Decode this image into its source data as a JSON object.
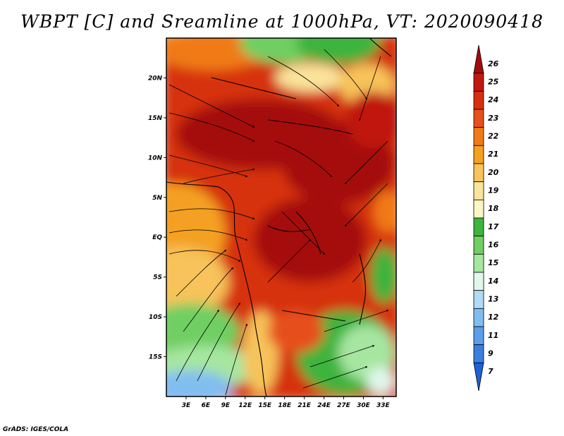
{
  "title": "WBPT [C] and Sreamline at 1000hPa, VT: 2020090418",
  "credit": "GrADS: IGES/COLA",
  "map": {
    "lat_ticks": [
      {
        "value": 20,
        "label": "20N"
      },
      {
        "value": 15,
        "label": "15N"
      },
      {
        "value": 10,
        "label": "10N"
      },
      {
        "value": 5,
        "label": "5N"
      },
      {
        "value": 0,
        "label": "EQ"
      },
      {
        "value": -5,
        "label": "5S"
      },
      {
        "value": -10,
        "label": "10S"
      },
      {
        "value": -15,
        "label": "15S"
      }
    ],
    "lon_ticks": [
      {
        "value": 3,
        "label": "3E"
      },
      {
        "value": 6,
        "label": "6E"
      },
      {
        "value": 9,
        "label": "9E"
      },
      {
        "value": 12,
        "label": "12E"
      },
      {
        "value": 15,
        "label": "15E"
      },
      {
        "value": 18,
        "label": "18E"
      },
      {
        "value": 21,
        "label": "21E"
      },
      {
        "value": 24,
        "label": "24E"
      },
      {
        "value": 27,
        "label": "27E"
      },
      {
        "value": 30,
        "label": "30E"
      },
      {
        "value": 33,
        "label": "33E"
      }
    ],
    "lon_range": [
      0,
      35
    ],
    "lat_range": [
      -20,
      25
    ]
  },
  "colorbar": {
    "labels": [
      "26",
      "25",
      "24",
      "23",
      "22",
      "21",
      "20",
      "19",
      "18",
      "17",
      "16",
      "15",
      "14",
      "13",
      "12",
      "11",
      "9",
      "7"
    ],
    "colors": [
      "#a50a0a",
      "#c0190f",
      "#d6300f",
      "#e6501a",
      "#f07a17",
      "#f4a020",
      "#f7c35a",
      "#fae39a",
      "#fbf7c4",
      "#3eb43e",
      "#6fcf62",
      "#a6e6a0",
      "#e0f7ea",
      "#b0daf5",
      "#82bdf0",
      "#5b9fe9",
      "#3a7fe0",
      "#1f5fd6"
    ]
  }
}
